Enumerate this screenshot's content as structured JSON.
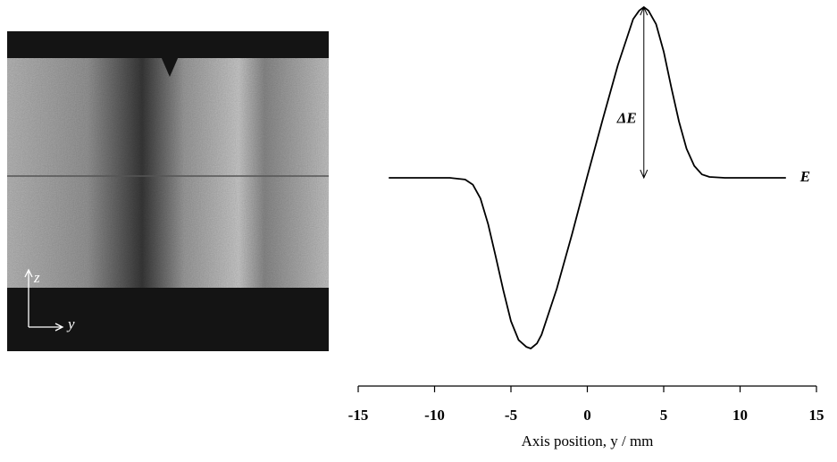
{
  "figure": {
    "image_axis_labels": [
      "z",
      "y"
    ]
  },
  "chart_data": {
    "type": "line",
    "xlabel": "Axis position, y / mm",
    "annotations": [
      "ΔE",
      "E"
    ],
    "x": [
      -13,
      -9,
      -8,
      -7.5,
      -7,
      -6.5,
      -6,
      -5.5,
      -5,
      -4.5,
      -4,
      -3.7,
      -3.3,
      -3,
      -2,
      -1,
      0,
      1,
      2,
      3,
      3.4,
      3.7,
      4,
      4.5,
      5,
      5.5,
      6,
      6.5,
      7,
      7.5,
      8,
      9,
      13
    ],
    "series": [
      {
        "color": "#000000",
        "values": [
          0,
          0,
          -0.01,
          -0.04,
          -0.12,
          -0.27,
          -0.46,
          -0.66,
          -0.84,
          -0.95,
          -0.99,
          -1,
          -0.97,
          -0.92,
          -0.65,
          -0.33,
          0.01,
          0.34,
          0.66,
          0.93,
          0.98,
          1,
          0.98,
          0.9,
          0.74,
          0.53,
          0.33,
          0.17,
          0.07,
          0.02,
          0.005,
          0,
          0
        ]
      }
    ],
    "xlim": [
      -15,
      15
    ],
    "xticks": [
      -15,
      -10,
      -5,
      0,
      5,
      10,
      15
    ],
    "ylim": [
      -1,
      1
    ]
  }
}
